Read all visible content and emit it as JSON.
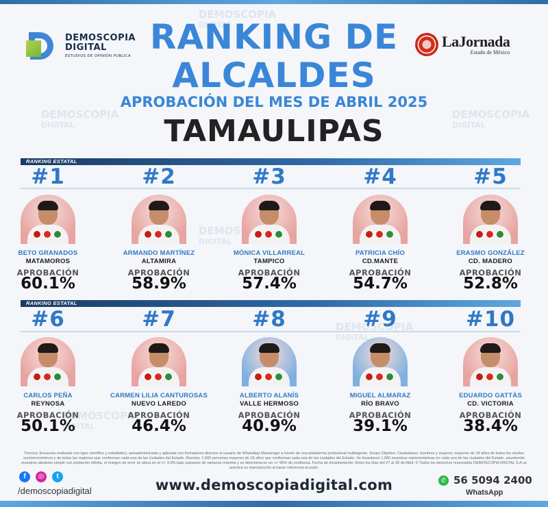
{
  "brand": {
    "logo_line1": "DEMOSCOPIA",
    "logo_line2": "DIGITAL",
    "logo_tagline": "ESTUDIOS DE OPINIÓN PÚBLICA",
    "partner_name": "LaJornada",
    "partner_sub": "Estado de México",
    "colors": {
      "primary_blue": "#3a86d8",
      "dark": "#222222",
      "bar_dark": "#1b3a63"
    }
  },
  "header": {
    "title_line1": "RANKING DE",
    "title_line2": "ALCALDES",
    "subtitle": "APROBACIÓN DEL MES DE ABRIL 2025",
    "state": "TAMAULIPAS"
  },
  "section_label": "RANKING ESTATAL",
  "approval_label": "APROBACIÓN",
  "candidates": [
    {
      "rank": "#1",
      "name": "BETO GRANADOS",
      "city": "MATAMOROS",
      "approval": "60.1%",
      "bg": "#e7a4a1"
    },
    {
      "rank": "#2",
      "name": "ARMANDO MARTÍNEZ",
      "city": "ALTAMIRA",
      "approval": "58.9%",
      "bg": "#e7a4a1"
    },
    {
      "rank": "#3",
      "name": "MÓNICA VILLARREAL",
      "city": "TAMPICO",
      "approval": "57.4%",
      "bg": "#e7a4a1"
    },
    {
      "rank": "#4",
      "name": "PATRICIA CHÍO",
      "city": "CD.MANTE",
      "approval": "54.7%",
      "bg": "#e7a4a1"
    },
    {
      "rank": "#5",
      "name": "ERASMO GONZÁLEZ",
      "city": "CD. MADERO",
      "approval": "52.8%",
      "bg": "#e7a4a1"
    },
    {
      "rank": "#6",
      "name": "CARLOS PEÑA",
      "city": "REYNOSA",
      "approval": "50.1%",
      "bg": "#e7a4a1"
    },
    {
      "rank": "#7",
      "name": "CARMEN LILIA CANTUROSAS",
      "city": "NUEVO LAREDO",
      "approval": "46.4%",
      "bg": "#e7a4a1"
    },
    {
      "rank": "#8",
      "name": "ALBERTO ALANÍS",
      "city": "VALLE HERMOSO",
      "approval": "40.9%",
      "bg": "#7fb0e0"
    },
    {
      "rank": "#9",
      "name": "MIGUEL ALMARAZ",
      "city": "RÍO BRAVO",
      "approval": "39.1%",
      "bg": "#7fb0e0"
    },
    {
      "rank": "#10",
      "name": "EDUARDO GATTÁS",
      "city": "CD. VICTORIA",
      "approval": "38.4%",
      "bg": "#e7a4a1"
    }
  ],
  "technical_note": "Técnica: Encuesta realizada con rigor científico y estadístico, autoadministrada y aplicada con formularios directos al usuario de WhatsApp Messenger a través de una plataforma profesional multiagente. Grupo Objetivo: Ciudadanos, hombres y mujeres, mayores de 18 años de todos los niveles socioeconómicos y de todas las regiones que conforman cada una de las ciudades del Estado. Muestra: 1,000 personas mayores de 18 años que conforman cada una de las ciudades del Estado. Se levantaron 1,000 muestras representativas en cada una de las ciudades del Estado, asumiendo muestreo aleatorio simple con población infinita, el margen de error se ubica en el +/- 3.0% bajo supuesto de varianza máxima y se determina en un +/- 95% de confianza. Fecha de levantamiento: Entre los días del 27 al 30 de Abril. © Todos los derechos reservados DEMOSCOPIA DIGITAL S.A se autoriza su reproducción al hacer referencia al autor.",
  "footer": {
    "handle": "/demoscopiadigital",
    "website": "www.demoscopiadigital.com",
    "phone": "56 5094 2400",
    "phone_label": "WhatsApp"
  }
}
